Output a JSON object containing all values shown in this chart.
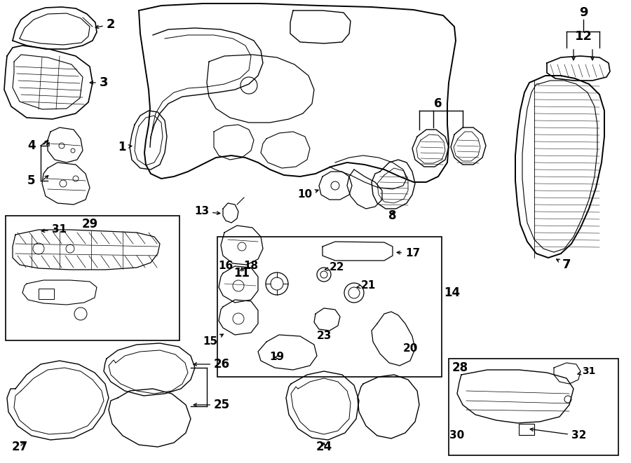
{
  "bg_color": "#ffffff",
  "line_color": "#000000",
  "fig_width": 9.0,
  "fig_height": 6.61,
  "dpi": 100,
  "lw": 1.0
}
